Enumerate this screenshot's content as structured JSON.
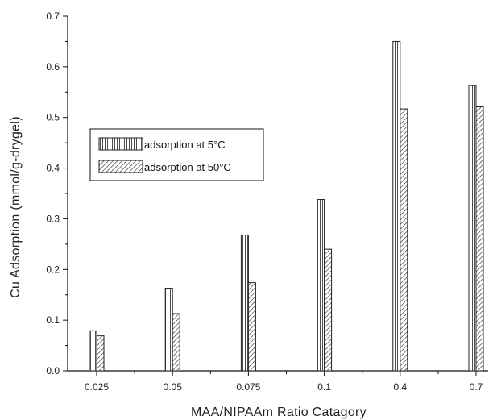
{
  "chart_data": {
    "type": "bar",
    "categories": [
      "0.025",
      "0.05",
      "0.075",
      "0.1",
      "0.4",
      "0.7"
    ],
    "series": [
      {
        "name": "adsorption at 5°C",
        "values": [
          0.079,
          0.163,
          0.268,
          0.338,
          0.65,
          0.563
        ]
      },
      {
        "name": "adsorption at 50°C",
        "values": [
          0.069,
          0.113,
          0.174,
          0.24,
          0.517,
          0.521
        ]
      }
    ],
    "xlabel": "MAA/NIPAAm Ratio Catagory",
    "ylabel": "Cu Adsorption (mmol/g-drygel)",
    "ylim": [
      0,
      0.7
    ],
    "yticks": [
      "0.0",
      "0.1",
      "0.2",
      "0.3",
      "0.4",
      "0.5",
      "0.6",
      "0.7"
    ],
    "grid": false,
    "legend_position": "middle-left",
    "colors": {
      "axis": "#111111",
      "bar_fill": "#ffffff",
      "bar_stroke": "#222222"
    }
  }
}
